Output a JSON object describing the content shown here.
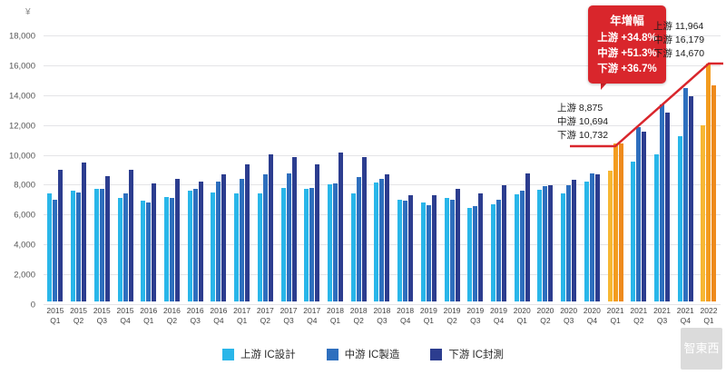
{
  "chart_data": {
    "type": "bar",
    "title": "",
    "y_unit": "¥",
    "ylim": [
      0,
      18000
    ],
    "ytick_step": 2000,
    "ytick_labels": [
      "0",
      "2,000",
      "4,000",
      "6,000",
      "8,000",
      "10,000",
      "12,000",
      "14,000",
      "16,000",
      "18,000"
    ],
    "grid": true,
    "legend_position": "bottom",
    "categories": [
      "2015 Q1",
      "2015 Q2",
      "2015 Q3",
      "2015 Q4",
      "2016 Q1",
      "2016 Q2",
      "2016 Q3",
      "2016 Q4",
      "2017 Q1",
      "2017 Q2",
      "2017 Q3",
      "2017 Q4",
      "2018 Q1",
      "2018 Q2",
      "2018 Q3",
      "2018 Q4",
      "2019 Q1",
      "2019 Q2",
      "2019 Q3",
      "2019 Q4",
      "2020 Q1",
      "2020 Q2",
      "2020 Q3",
      "2020 Q4",
      "2021 Q1",
      "2021 Q2",
      "2021 Q3",
      "2021 Q4",
      "2022 Q1"
    ],
    "highlight_categories": [
      "2021 Q1",
      "2022 Q1"
    ],
    "series": [
      {
        "key": "upstream",
        "name": "上游 IC設計",
        "color": "#29b6e9",
        "highlight_color": "#f7b733",
        "values": [
          7350,
          7500,
          7650,
          7000,
          6800,
          7050,
          7500,
          7400,
          7350,
          7300,
          7700,
          7650,
          7950,
          7300,
          8050,
          6900,
          6700,
          7000,
          6350,
          6600,
          7250,
          7550,
          7300,
          8100,
          8875,
          9500,
          10000,
          11200,
          11964
        ]
      },
      {
        "key": "midstream",
        "name": "中游 IC製造",
        "color": "#2e6fbe",
        "highlight_color": "#f39c1f",
        "values": [
          6900,
          7400,
          7600,
          7350,
          6700,
          7000,
          7600,
          8100,
          8300,
          8600,
          8700,
          7700,
          8000,
          8450,
          8300,
          6800,
          6500,
          6900,
          6450,
          6900,
          7500,
          7800,
          7900,
          8700,
          10694,
          11800,
          13400,
          14500,
          16179
        ]
      },
      {
        "key": "downstream",
        "name": "下游 IC封測",
        "color": "#2c3d8f",
        "highlight_color": "#ee8a1d",
        "values": [
          8900,
          9400,
          8500,
          8900,
          8000,
          8300,
          8100,
          8600,
          9300,
          10000,
          9800,
          9300,
          10100,
          9800,
          8600,
          7200,
          7200,
          7600,
          7300,
          7900,
          8650,
          7900,
          8250,
          8600,
          10732,
          11500,
          12800,
          13900,
          14670
        ]
      }
    ]
  },
  "callout": {
    "title": "年增幅",
    "lines": [
      "上游 +34.8%",
      "中游 +51.3%",
      "下游 +36.7%"
    ],
    "color": "#d9262c"
  },
  "annotation_2022": {
    "lines": [
      "上游 11,964",
      "中游 16,179",
      "下游 14,670"
    ]
  },
  "annotation_2021": {
    "lines": [
      "上游 8,875",
      "中游 10,694",
      "下游 10,732"
    ]
  },
  "watermark": {
    "text": "智東西"
  }
}
